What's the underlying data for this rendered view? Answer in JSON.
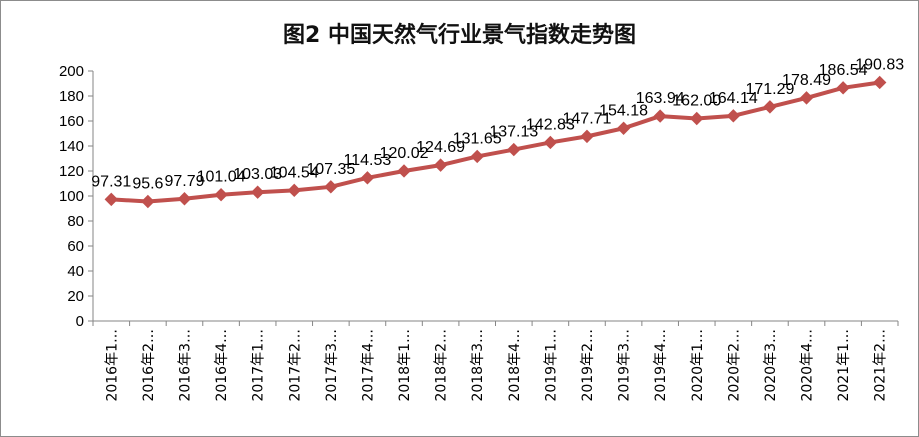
{
  "title": "图2 中国天然气行业景气指数走势图",
  "chart_data": {
    "type": "line",
    "title": "图2 中国天然气行业景气指数走势图",
    "xlabel": "",
    "ylabel": "",
    "ylim": [
      0,
      200
    ],
    "yticks": [
      0,
      20,
      40,
      60,
      80,
      100,
      120,
      140,
      160,
      180,
      200
    ],
    "grid": false,
    "legend": "none",
    "line_color": "#c0504d",
    "categories": [
      "2016年1…",
      "2016年2…",
      "2016年3…",
      "2016年4…",
      "2017年1…",
      "2017年2…",
      "2017年3…",
      "2017年4…",
      "2018年1…",
      "2018年2…",
      "2018年3…",
      "2018年4…",
      "2019年1…",
      "2019年2…",
      "2019年3…",
      "2019年4…",
      "2020年1…",
      "2020年2…",
      "2020年3…",
      "2020年4…",
      "2021年1…",
      "2021年2…"
    ],
    "values": [
      97.31,
      95.6,
      97.79,
      101.04,
      103.03,
      104.54,
      107.35,
      114.53,
      120.02,
      124.69,
      131.65,
      137.13,
      142.83,
      147.71,
      154.18,
      163.94,
      162.0,
      164.14,
      171.29,
      178.49,
      186.54,
      190.83
    ],
    "data_labels": [
      "97.31",
      "95.6",
      "97.79",
      "101.04",
      "103.03",
      "104.54",
      "107.35",
      "114.53",
      "120.02",
      "124.69",
      "131.65",
      "137.13",
      "142.83",
      "147.71",
      "154.18",
      "163.94",
      "162.00",
      "164.14",
      "171.29",
      "178.49",
      "186.54",
      "190.83"
    ]
  }
}
